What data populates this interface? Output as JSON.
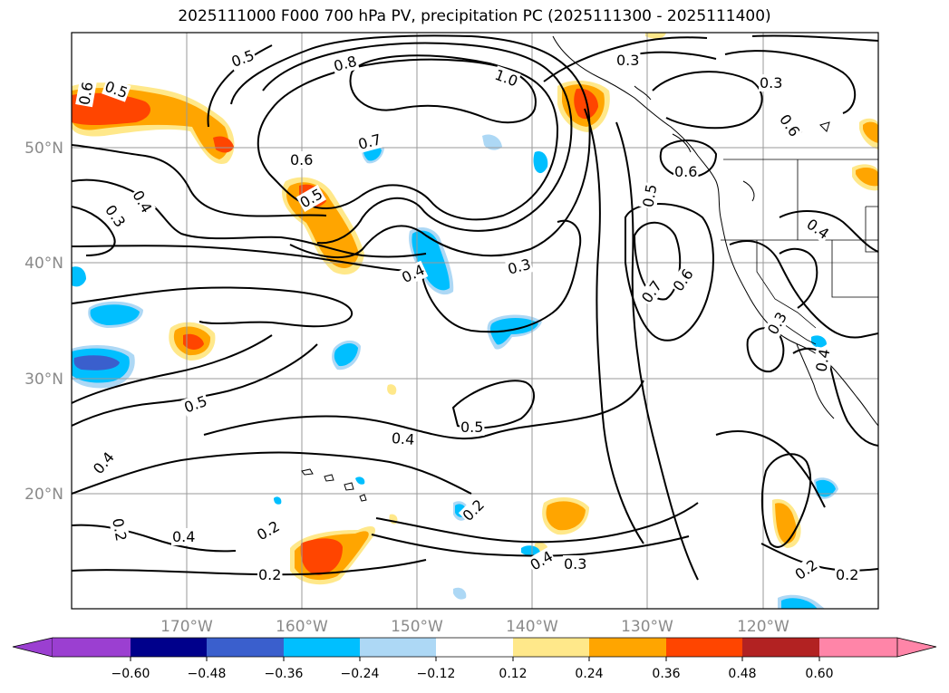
{
  "title": "2025111000 F000 700 hPa PV, precipitation PC (2025111300 - 2025111400)",
  "map": {
    "projection": "plate-carree",
    "lon_range": [
      -180,
      -110
    ],
    "lat_range": [
      10,
      60
    ],
    "grid": true,
    "lat_ticks": [
      "50°N",
      "40°N",
      "30°N",
      "20°N"
    ],
    "lon_ticks": [
      "170°W",
      "160°W",
      "150°W",
      "140°W",
      "130°W",
      "120°W"
    ]
  },
  "contour_labels": [
    "0.5",
    "0.8",
    "1.0",
    "0.3",
    "0.6",
    "0.5",
    "0.7",
    "0.6",
    "0.4",
    "0.3",
    "0.5",
    "0.4",
    "0.3",
    "0.5",
    "0.7",
    "0.6",
    "0.6",
    "0.4",
    "0.3",
    "0.4",
    "0.3",
    "0.5",
    "0.4",
    "0.4",
    "0.2",
    "0.2",
    "0.4",
    "0.2",
    "0.2",
    "0.4",
    "0.3",
    "0.2",
    "0.2",
    "0.5",
    "0.6"
  ],
  "colorbar": {
    "ticks": [
      "−0.60",
      "−0.48",
      "−0.36",
      "−0.24",
      "−0.12",
      "0.12",
      "0.24",
      "0.36",
      "0.48",
      "0.60"
    ],
    "colors": [
      "#9b3fd1",
      "#00008b",
      "#3a5fcd",
      "#00bfff",
      "#add8f5",
      "#ffffff",
      "#ffe88a",
      "#ffa500",
      "#ff4500",
      "#b22222",
      "#ff85a8"
    ],
    "extend": "both"
  },
  "fill_colors": {
    "neg1": "#add8f5",
    "neg2": "#00bfff",
    "neg3": "#3a5fcd",
    "pos1": "#ffe88a",
    "pos2": "#ffa500",
    "pos3": "#ff4500"
  }
}
